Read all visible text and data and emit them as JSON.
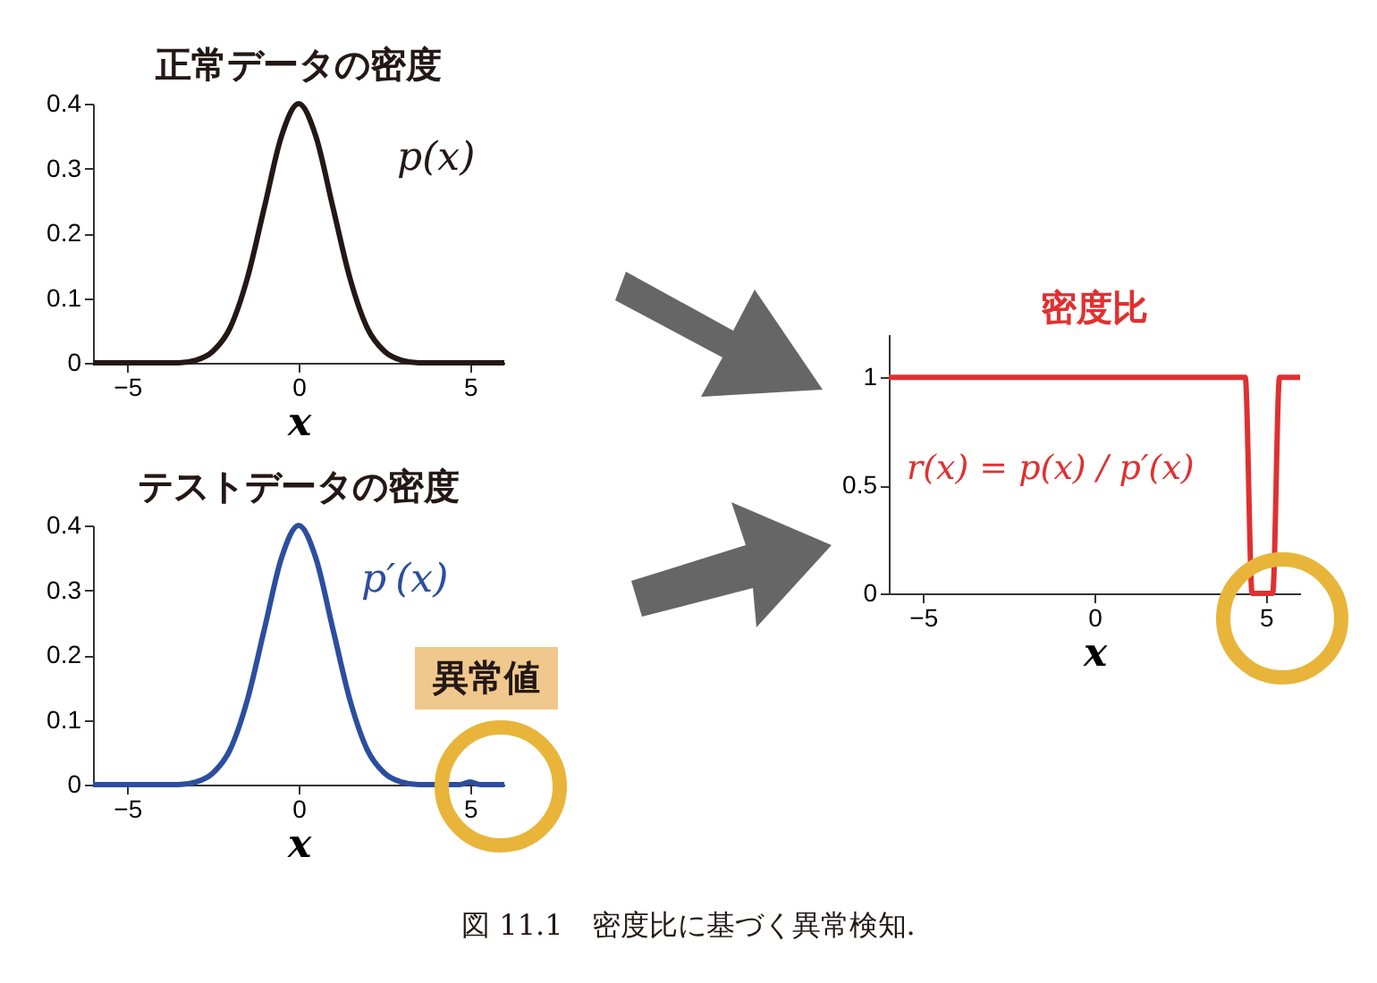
{
  "chart_data": [
    {
      "type": "line",
      "title": "正常データの密度",
      "xlabel": "x",
      "x": [
        -6,
        -3.5,
        -3,
        -2.5,
        -2,
        -1.5,
        -1,
        -0.5,
        0,
        0.5,
        1,
        1.5,
        2,
        2.5,
        3,
        3.5,
        6
      ],
      "series": [
        {
          "name": "p(x)",
          "color": "#231815",
          "values": [
            0,
            0,
            0.004,
            0.018,
            0.054,
            0.13,
            0.24,
            0.35,
            0.4,
            0.35,
            0.24,
            0.13,
            0.054,
            0.018,
            0.004,
            0,
            0
          ]
        }
      ],
      "xlim": [
        -6,
        6
      ],
      "xticks": [
        -5,
        0,
        5
      ],
      "ylim": [
        0,
        0.4
      ],
      "yticks": [
        0,
        0.1,
        0.2,
        0.3,
        0.4
      ]
    },
    {
      "type": "line",
      "title": "テストデータの密度",
      "xlabel": "x",
      "annotations": [
        "異常値"
      ],
      "x": [
        -6,
        -3.5,
        -3,
        -2.5,
        -2,
        -1.5,
        -1,
        -0.5,
        0,
        0.5,
        1,
        1.5,
        2,
        2.5,
        3,
        3.5,
        4.7,
        5,
        5.3,
        6
      ],
      "series": [
        {
          "name": "p′(x)",
          "color": "#2b4ea0",
          "values": [
            0,
            0,
            0.004,
            0.018,
            0.054,
            0.13,
            0.24,
            0.35,
            0.4,
            0.35,
            0.24,
            0.13,
            0.054,
            0.018,
            0.004,
            0,
            0,
            0.004,
            0,
            0
          ]
        }
      ],
      "xlim": [
        -6,
        6
      ],
      "xticks": [
        -5,
        0,
        5
      ],
      "ylim": [
        0,
        0.4
      ],
      "yticks": [
        0,
        0.1,
        0.2,
        0.3,
        0.4
      ]
    },
    {
      "type": "line",
      "title": "密度比",
      "xlabel": "x",
      "annotations": [
        "図 11.1　密度比に基づく異常検知."
      ],
      "x": [
        -6,
        4.4,
        4.6,
        5.2,
        5.4,
        6
      ],
      "series": [
        {
          "name": "r(x) = p(x) / p′(x)",
          "color": "#e03030",
          "values": [
            1,
            1,
            0,
            0,
            1,
            1
          ]
        }
      ],
      "xlim": [
        -6,
        6
      ],
      "xticks": [
        -5,
        0,
        5
      ],
      "ylim": [
        0,
        1.2
      ],
      "yticks": [
        0,
        0.5,
        1
      ]
    }
  ]
}
